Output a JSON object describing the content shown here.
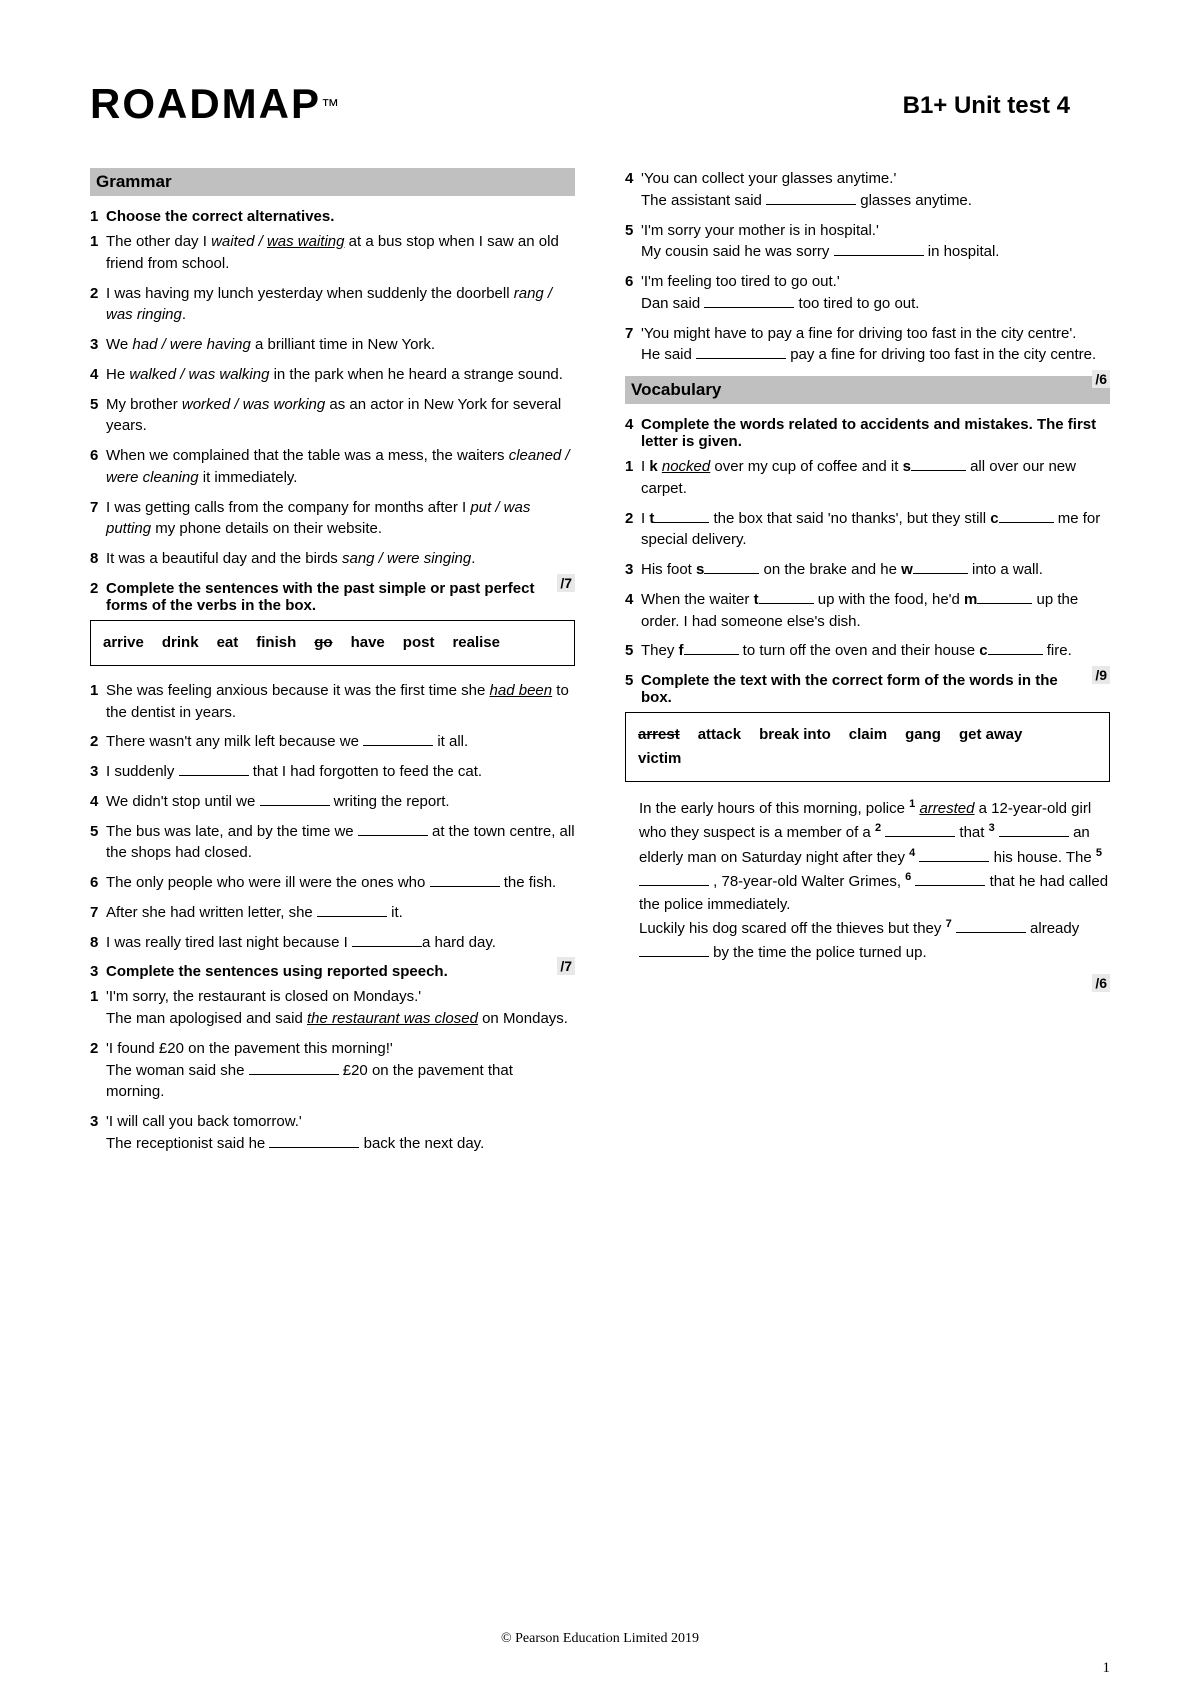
{
  "header": {
    "logo": "ROADMAP",
    "tm": "™",
    "unit": "B1+ Unit test 4"
  },
  "sections": {
    "grammar": "Grammar",
    "vocabulary": "Vocabulary"
  },
  "ex1": {
    "instruction": "Choose the correct alternatives.",
    "items": [
      {
        "n": "1",
        "pre": "The other day I ",
        "i1": "waited / ",
        "u": "was waiting",
        "post": " at a bus stop when I saw an old friend from school."
      },
      {
        "n": "2",
        "pre": "I was having my lunch yesterday when suddenly the doorbell ",
        "i1": "rang / was ringing",
        "u": "",
        "post": "."
      },
      {
        "n": "3",
        "pre": "We ",
        "i1": "had / were having",
        "u": "",
        "post": " a brilliant time in New York."
      },
      {
        "n": "4",
        "pre": "He ",
        "i1": "walked / was walking",
        "u": "",
        "post": " in the park when he heard a strange sound."
      },
      {
        "n": "5",
        "pre": "My brother ",
        "i1": "worked / was working",
        "u": "",
        "post": " as an actor in New York for several years."
      },
      {
        "n": "6",
        "pre": "When we complained that the table was a mess, the waiters ",
        "i1": "cleaned / were cleaning",
        "u": "",
        "post": " it immediately."
      },
      {
        "n": "7",
        "pre": "I was getting calls from the company for months after I ",
        "i1": "put / was putting",
        "u": "",
        "post": " my phone details on their website."
      },
      {
        "n": "8",
        "pre": "It was a beautiful day and the birds ",
        "i1": "sang / were singing",
        "u": "",
        "post": "."
      }
    ],
    "score": "/7"
  },
  "ex2": {
    "instruction": "Complete the sentences with the past simple or past perfect forms of the verbs in the box.",
    "box": [
      "arrive",
      "drink",
      "eat",
      "finish",
      "go",
      "have",
      "post",
      "realise"
    ],
    "strike_idx": 4,
    "items": [
      {
        "n": "1",
        "pre": "She was feeling anxious because it was the first time she ",
        "u": "had been",
        "post": " to the dentist in years."
      },
      {
        "n": "2",
        "pre": "There wasn't any milk left because we ",
        "blank": true,
        "post": " it all."
      },
      {
        "n": "3",
        "pre": "I suddenly ",
        "blank": true,
        "post": " that I had forgotten to feed the cat."
      },
      {
        "n": "4",
        "pre": "We didn't stop until we ",
        "blank": true,
        "post": " writing the report."
      },
      {
        "n": "5",
        "pre": "The bus was late, and by the time we ",
        "blank": true,
        "post": " at the town centre, all the shops had closed."
      },
      {
        "n": "6",
        "pre": "The only people who were ill were the ones who ",
        "blank": true,
        "post": " the fish."
      },
      {
        "n": "7",
        "pre": "After she had written letter, she ",
        "blank": true,
        "post": " it."
      },
      {
        "n": "8",
        "pre": "I was really tired last night because I ",
        "blank": true,
        "post": "a hard day."
      }
    ],
    "score": "/7"
  },
  "ex3": {
    "instruction": "Complete the sentences using reported speech.",
    "items": [
      {
        "n": "1",
        "q": "'I'm sorry, the restaurant is closed on Mondays.'",
        "a_pre": "The man apologised and said ",
        "u": "the restaurant was closed",
        "a_post": " on Mondays."
      },
      {
        "n": "2",
        "q": "'I found £20 on the pavement this morning!'",
        "a_pre": "The woman said she ",
        "blank": true,
        "a_post": " £20 on the pavement that morning."
      },
      {
        "n": "3",
        "q": "'I will call you back tomorrow.'",
        "a_pre": "The receptionist said he ",
        "blank": true,
        "a_post": " back the next day."
      },
      {
        "n": "4",
        "q": "'You can collect your glasses anytime.'",
        "a_pre": "The assistant said ",
        "blank": true,
        "a_post": " glasses anytime."
      },
      {
        "n": "5",
        "q": "'I'm sorry your mother is in hospital.'",
        "a_pre": "My cousin said he was sorry ",
        "blank": true,
        "a_post": " in hospital."
      },
      {
        "n": "6",
        "q": "'I'm feeling too tired to go out.'",
        "a_pre": "Dan said ",
        "blank": true,
        "a_post": " too tired to go out."
      },
      {
        "n": "7",
        "q": "'You might have to pay a fine for driving too fast in the city centre'.",
        "a_pre": "He said ",
        "blank": true,
        "a_post": " pay a fine for driving too fast in the city centre."
      }
    ],
    "score": "/6"
  },
  "ex4": {
    "instruction": "Complete the words related to accidents and mistakes. The first letter is given.",
    "items": [
      {
        "n": "1",
        "html": "I <b>k</b> <span class='italic underline'>nocked</span> over my cup of coffee and it <b>s</b><span class='blank blank-short'></span> all over our new carpet."
      },
      {
        "n": "2",
        "html": "I <b>t</b><span class='blank blank-short'></span> the box that said 'no thanks', but they still <b>c</b><span class='blank blank-short'></span> me for special delivery."
      },
      {
        "n": "3",
        "html": "His foot <b>s</b><span class='blank blank-short'></span> on the brake and he <b>w</b><span class='blank blank-short'></span> into a wall."
      },
      {
        "n": "4",
        "html": "When the waiter <b>t</b><span class='blank blank-short'></span> up with the food, he'd <b>m</b><span class='blank blank-short'></span> up the order. I had someone else's dish."
      },
      {
        "n": "5",
        "html": "They <b>f</b><span class='blank blank-short'></span> to turn off the oven and their house <b>c</b><span class='blank blank-short'></span> fire."
      }
    ],
    "score": "/9"
  },
  "ex5": {
    "instruction": "Complete the text with the correct form of the words in the box.",
    "box": [
      "arrest",
      "attack",
      "break into",
      "claim",
      "gang",
      "get away",
      "victim"
    ],
    "strike_idx": 0,
    "para": "In the early hours of this morning, police <span class='super'>1</span> <span class='italic underline'>arrested</span> a 12-year-old girl who they suspect is a member of a <span class='super'>2</span> <span class='blank'></span> that <span class='super'>3</span> <span class='blank'></span> an elderly man on Saturday night after they <span class='super'>4</span> <span class='blank'></span> his house. The <span class='super'>5</span> <span class='blank'></span> , 78-year-old Walter Grimes, <span class='super'>6</span> <span class='blank'></span> that he had called the police immediately.<br>Luckily his dog scared off the thieves but they <span class='super'>7</span> <span class='blank'></span> already <span class='blank'></span> by the time the police turned up.",
    "score": "/6"
  },
  "footer": "© Pearson Education Limited 2019",
  "pagenum": "1"
}
